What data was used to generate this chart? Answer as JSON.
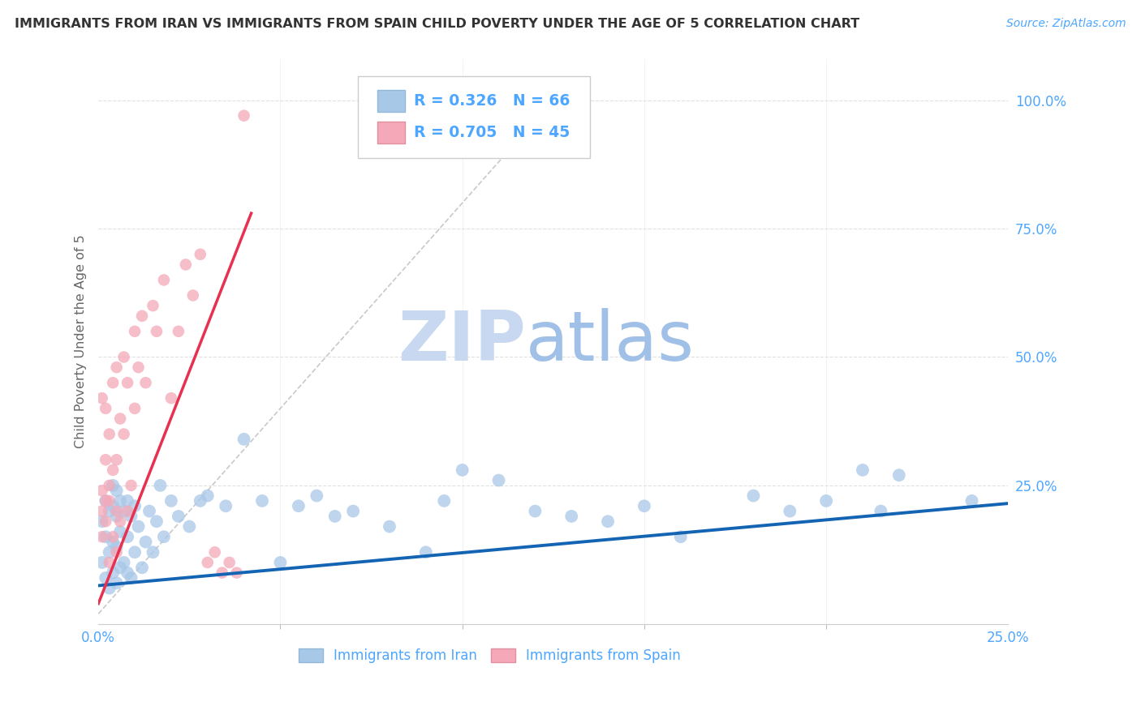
{
  "title": "IMMIGRANTS FROM IRAN VS IMMIGRANTS FROM SPAIN CHILD POVERTY UNDER THE AGE OF 5 CORRELATION CHART",
  "source": "Source: ZipAtlas.com",
  "ylabel": "Child Poverty Under the Age of 5",
  "yticklabels": [
    "100.0%",
    "75.0%",
    "50.0%",
    "25.0%"
  ],
  "ytick_values": [
    1.0,
    0.75,
    0.5,
    0.25
  ],
  "xlim": [
    0.0,
    0.25
  ],
  "ylim": [
    -0.02,
    1.08
  ],
  "iran_color": "#a8c8e8",
  "spain_color": "#f4a8b8",
  "iran_line_color": "#1464b4",
  "spain_line_color": "#e83050",
  "iran_R": 0.326,
  "iran_N": 66,
  "spain_R": 0.705,
  "spain_N": 45,
  "iran_scatter_x": [
    0.001,
    0.001,
    0.002,
    0.002,
    0.002,
    0.003,
    0.003,
    0.003,
    0.004,
    0.004,
    0.004,
    0.004,
    0.005,
    0.005,
    0.005,
    0.005,
    0.006,
    0.006,
    0.006,
    0.007,
    0.007,
    0.008,
    0.008,
    0.008,
    0.009,
    0.009,
    0.01,
    0.01,
    0.011,
    0.012,
    0.013,
    0.014,
    0.015,
    0.016,
    0.017,
    0.018,
    0.02,
    0.022,
    0.025,
    0.028,
    0.03,
    0.035,
    0.04,
    0.045,
    0.05,
    0.055,
    0.06,
    0.065,
    0.07,
    0.08,
    0.09,
    0.095,
    0.1,
    0.11,
    0.12,
    0.13,
    0.14,
    0.15,
    0.16,
    0.18,
    0.19,
    0.2,
    0.21,
    0.215,
    0.22,
    0.24
  ],
  "iran_scatter_y": [
    0.1,
    0.18,
    0.07,
    0.15,
    0.22,
    0.05,
    0.12,
    0.2,
    0.08,
    0.14,
    0.21,
    0.25,
    0.06,
    0.13,
    0.19,
    0.24,
    0.09,
    0.16,
    0.22,
    0.1,
    0.2,
    0.08,
    0.15,
    0.22,
    0.07,
    0.19,
    0.12,
    0.21,
    0.17,
    0.09,
    0.14,
    0.2,
    0.12,
    0.18,
    0.25,
    0.15,
    0.22,
    0.19,
    0.17,
    0.22,
    0.23,
    0.21,
    0.34,
    0.22,
    0.1,
    0.21,
    0.23,
    0.19,
    0.2,
    0.17,
    0.12,
    0.22,
    0.28,
    0.26,
    0.2,
    0.19,
    0.18,
    0.21,
    0.15,
    0.23,
    0.2,
    0.22,
    0.28,
    0.2,
    0.27,
    0.22
  ],
  "spain_scatter_x": [
    0.001,
    0.001,
    0.001,
    0.001,
    0.002,
    0.002,
    0.002,
    0.002,
    0.003,
    0.003,
    0.003,
    0.003,
    0.004,
    0.004,
    0.004,
    0.005,
    0.005,
    0.005,
    0.005,
    0.006,
    0.006,
    0.007,
    0.007,
    0.008,
    0.008,
    0.009,
    0.01,
    0.01,
    0.011,
    0.012,
    0.013,
    0.015,
    0.016,
    0.018,
    0.02,
    0.022,
    0.024,
    0.026,
    0.028,
    0.03,
    0.032,
    0.034,
    0.036,
    0.038,
    0.04
  ],
  "spain_scatter_y": [
    0.2,
    0.24,
    0.15,
    0.42,
    0.18,
    0.3,
    0.22,
    0.4,
    0.1,
    0.25,
    0.35,
    0.22,
    0.28,
    0.45,
    0.15,
    0.12,
    0.3,
    0.48,
    0.2,
    0.38,
    0.18,
    0.35,
    0.5,
    0.2,
    0.45,
    0.25,
    0.4,
    0.55,
    0.48,
    0.58,
    0.45,
    0.6,
    0.55,
    0.65,
    0.42,
    0.55,
    0.68,
    0.62,
    0.7,
    0.1,
    0.12,
    0.08,
    0.1,
    0.08,
    0.97
  ],
  "legend_iran_label": "Immigrants from Iran",
  "legend_spain_label": "Immigrants from Spain",
  "background_color": "#ffffff",
  "grid_color": "#dddddd",
  "title_color": "#333333",
  "axis_label_color": "#4da6ff",
  "watermark_zip": "ZIP",
  "watermark_atlas": "atlas",
  "watermark_color_zip": "#c8d8f0",
  "watermark_color_atlas": "#a0c0e8",
  "iran_line_x": [
    0.0,
    0.25
  ],
  "iran_line_y": [
    0.055,
    0.215
  ],
  "spain_line_x": [
    0.0,
    0.042
  ],
  "spain_line_y": [
    0.02,
    0.78
  ],
  "diag_line_x": [
    0.0,
    0.125
  ],
  "diag_line_y": [
    0.0,
    1.0
  ]
}
